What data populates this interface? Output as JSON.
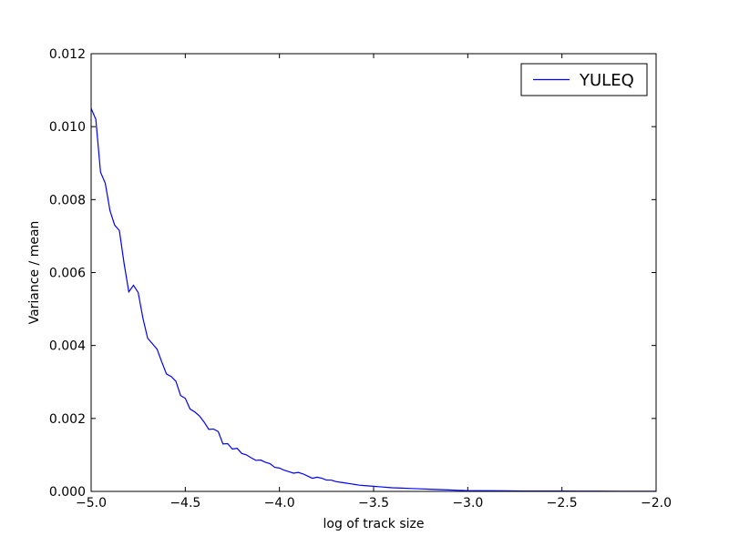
{
  "chart_data": {
    "type": "line",
    "xlabel": "log of track size",
    "ylabel": "Variance / mean",
    "xlim": [
      -5.0,
      -2.0
    ],
    "ylim": [
      0.0,
      0.012
    ],
    "grid": false,
    "legend_position": "top-right",
    "x_ticks": [
      -5.0,
      -4.5,
      -4.0,
      -3.5,
      -3.0,
      -2.5,
      -2.0
    ],
    "x_tick_labels": [
      "−5.0",
      "−4.5",
      "−4.0",
      "−3.5",
      "−3.0",
      "−2.5",
      "−2.0"
    ],
    "y_ticks": [
      0.0,
      0.002,
      0.004,
      0.006,
      0.008,
      0.01,
      0.012
    ],
    "y_tick_labels": [
      "0.000",
      "0.002",
      "0.004",
      "0.006",
      "0.008",
      "0.010",
      "0.012"
    ],
    "series": [
      {
        "name": "YULEQ",
        "color": "#0000ff",
        "x": [
          -5.0,
          -4.975,
          -4.95,
          -4.925,
          -4.9,
          -4.875,
          -4.85,
          -4.825,
          -4.8,
          -4.775,
          -4.75,
          -4.725,
          -4.7,
          -4.675,
          -4.65,
          -4.625,
          -4.6,
          -4.575,
          -4.55,
          -4.525,
          -4.5,
          -4.475,
          -4.45,
          -4.425,
          -4.4,
          -4.375,
          -4.35,
          -4.325,
          -4.3,
          -4.275,
          -4.25,
          -4.225,
          -4.2,
          -4.175,
          -4.15,
          -4.125,
          -4.1,
          -4.075,
          -4.05,
          -4.025,
          -4.0,
          -3.975,
          -3.95,
          -3.925,
          -3.9,
          -3.875,
          -3.85,
          -3.825,
          -3.8,
          -3.775,
          -3.75,
          -3.725,
          -3.7,
          -3.675,
          -3.65,
          -3.625,
          -3.6,
          -3.575,
          -3.55,
          -3.525,
          -3.5,
          -3.475,
          -3.45,
          -3.425,
          -3.4,
          -3.35,
          -3.3,
          -3.25,
          -3.2,
          -3.15,
          -3.1,
          -3.05,
          -3.0,
          -2.9,
          -2.8,
          -2.7,
          -2.6,
          -2.5,
          -2.4,
          -2.3,
          -2.2,
          -2.1,
          -2.0
        ],
        "y": [
          0.0105,
          0.0102,
          0.00875,
          0.00845,
          0.0077,
          0.0073,
          0.00715,
          0.00625,
          0.00547,
          0.00565,
          0.00545,
          0.00475,
          0.0042,
          0.00405,
          0.0039,
          0.00355,
          0.00322,
          0.00315,
          0.00302,
          0.00263,
          0.00255,
          0.00226,
          0.00218,
          0.00207,
          0.0019,
          0.0017,
          0.00171,
          0.00164,
          0.0013,
          0.00131,
          0.00116,
          0.00118,
          0.00104,
          0.001,
          0.00092,
          0.00085,
          0.00086,
          0.0008,
          0.00076,
          0.00066,
          0.00064,
          0.00058,
          0.00054,
          0.0005,
          0.00052,
          0.00048,
          0.00042,
          0.00036,
          0.00039,
          0.00036,
          0.00031,
          0.00031,
          0.00027,
          0.00025,
          0.00023,
          0.00021,
          0.00019,
          0.00017,
          0.00016,
          0.00015,
          0.00014,
          0.00013,
          0.00012,
          0.00011,
          0.0001,
          9e-05,
          8e-05,
          7e-05,
          6e-05,
          5e-05,
          4e-05,
          3e-05,
          2e-05,
          2e-05,
          1.5e-05,
          1e-05,
          1e-05,
          1e-05,
          8e-06,
          6e-06,
          5e-06,
          4e-06,
          3e-06
        ]
      }
    ]
  }
}
